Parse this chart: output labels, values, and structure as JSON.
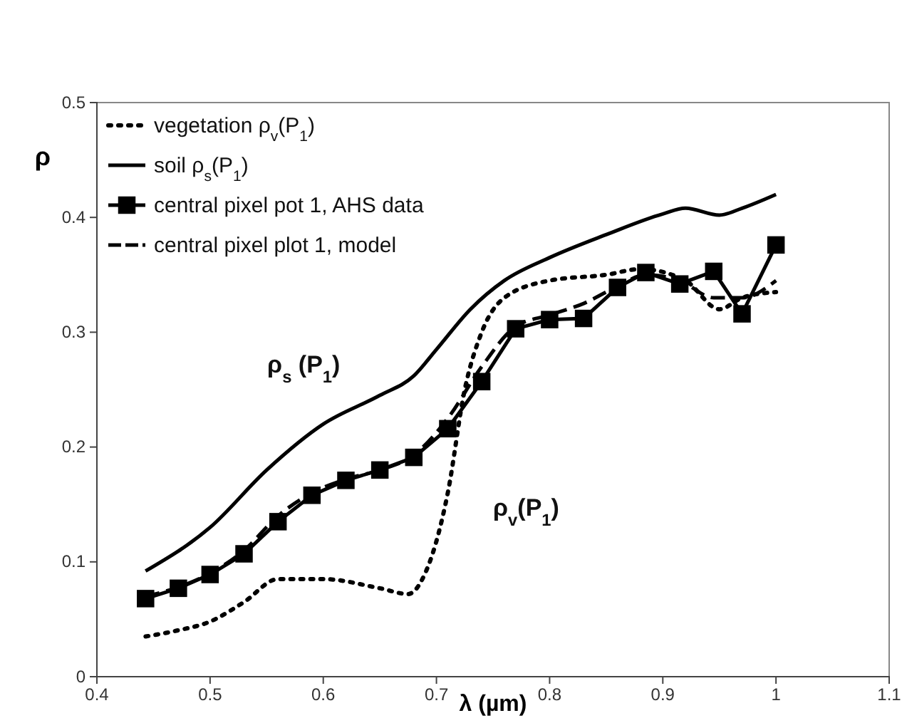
{
  "chart_data": {
    "type": "line",
    "xlabel": "λ (µm)",
    "ylabel": "ρ",
    "xlim": [
      0.4,
      1.1
    ],
    "ylim": [
      0,
      0.5
    ],
    "xticks": [
      0.4,
      0.5,
      0.6,
      0.7,
      0.8,
      0.9,
      1,
      1.1
    ],
    "yticks": [
      0,
      0.1,
      0.2,
      0.3,
      0.4,
      0.5
    ],
    "grid": false,
    "legend": "top left",
    "series": [
      {
        "name": "vegetation  ρ$_{v}$(P$_{1}$)",
        "color": "#000000",
        "line_style": "dotted",
        "marker": "none",
        "x": [
          0.443,
          0.47,
          0.5,
          0.53,
          0.56,
          0.6,
          0.65,
          0.675,
          0.69,
          0.71,
          0.725,
          0.74,
          0.76,
          0.8,
          0.85,
          0.88,
          0.92,
          0.95,
          0.97,
          1.0
        ],
        "values": [
          0.035,
          0.04,
          0.048,
          0.065,
          0.085,
          0.085,
          0.077,
          0.072,
          0.09,
          0.16,
          0.25,
          0.3,
          0.33,
          0.345,
          0.35,
          0.355,
          0.345,
          0.32,
          0.33,
          0.335
        ]
      },
      {
        "name": "soil  ρ$_{s}$(P$_{1}$)",
        "color": "#000000",
        "line_style": "solid",
        "marker": "none",
        "x": [
          0.443,
          0.5,
          0.55,
          0.6,
          0.65,
          0.68,
          0.7,
          0.73,
          0.76,
          0.8,
          0.85,
          0.9,
          0.92,
          0.95,
          0.97,
          1.0
        ],
        "values": [
          0.092,
          0.13,
          0.18,
          0.22,
          0.245,
          0.262,
          0.285,
          0.32,
          0.345,
          0.365,
          0.385,
          0.403,
          0.408,
          0.402,
          0.408,
          0.42
        ]
      },
      {
        "name": "central pixel pot 1, AHS data",
        "color": "#000000",
        "line_style": "solid",
        "marker": "square",
        "x": [
          0.443,
          0.472,
          0.5,
          0.53,
          0.56,
          0.59,
          0.62,
          0.65,
          0.68,
          0.71,
          0.74,
          0.77,
          0.8,
          0.83,
          0.86,
          0.885,
          0.915,
          0.945,
          0.97,
          1.0
        ],
        "values": [
          0.068,
          0.077,
          0.089,
          0.107,
          0.135,
          0.158,
          0.171,
          0.18,
          0.191,
          0.216,
          0.257,
          0.303,
          0.311,
          0.312,
          0.339,
          0.352,
          0.342,
          0.353,
          0.316,
          0.376
        ]
      },
      {
        "name": "central pixel plot 1, model",
        "color": "#000000",
        "line_style": "dashed",
        "marker": "none",
        "x": [
          0.443,
          0.472,
          0.5,
          0.53,
          0.56,
          0.59,
          0.62,
          0.65,
          0.68,
          0.71,
          0.74,
          0.77,
          0.8,
          0.83,
          0.86,
          0.885,
          0.915,
          0.945,
          0.97,
          1.0
        ],
        "values": [
          0.07,
          0.078,
          0.09,
          0.11,
          0.14,
          0.16,
          0.172,
          0.18,
          0.193,
          0.225,
          0.27,
          0.305,
          0.315,
          0.325,
          0.34,
          0.35,
          0.345,
          0.33,
          0.33,
          0.345
        ]
      }
    ],
    "annotations": [
      "ρ$_{s}$ (P$_{1}$)",
      "ρ$_{v}$(P$_{1}$)"
    ]
  }
}
